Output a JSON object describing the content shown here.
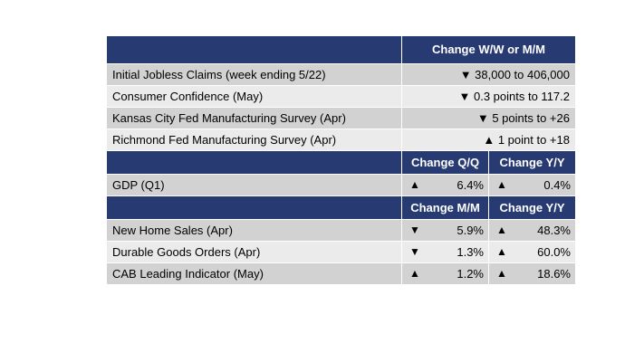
{
  "section1": {
    "header": "Change W/W or M/M",
    "rows": [
      {
        "label": "Initial Jobless Claims (week ending 5/22)",
        "value": "▼ 38,000 to 406,000"
      },
      {
        "label": "Consumer Confidence (May)",
        "value": "▼ 0.3 points to 117.2"
      },
      {
        "label": "Kansas City Fed Manufacturing Survey (Apr)",
        "value": "▼ 5 points to +26"
      },
      {
        "label": "Richmond Fed Manufacturing Survey (Apr)",
        "value": "▲ 1 point to +18"
      }
    ]
  },
  "section2": {
    "header_a": "Change Q/Q",
    "header_b": "Change Y/Y",
    "rows": [
      {
        "label": "GDP (Q1)",
        "a_arrow": "▲",
        "a_val": "6.4%",
        "b_arrow": "▲",
        "b_val": "0.4%"
      }
    ]
  },
  "section3": {
    "header_a": "Change M/M",
    "header_b": "Change Y/Y",
    "rows": [
      {
        "label": "New Home Sales (Apr)",
        "a_arrow": "▼",
        "a_val": "5.9%",
        "b_arrow": "▲",
        "b_val": "48.3%"
      },
      {
        "label": "Durable Goods Orders (Apr)",
        "a_arrow": "▼",
        "a_val": "1.3%",
        "b_arrow": "▲",
        "b_val": "60.0%"
      },
      {
        "label": "CAB Leading Indicator (May)",
        "a_arrow": "▲",
        "a_val": "1.2%",
        "b_arrow": "▲",
        "b_val": "18.6%"
      }
    ]
  },
  "colors": {
    "header": "#283a72",
    "row_dark": "#d2d2d2",
    "row_light": "#ebebeb"
  }
}
